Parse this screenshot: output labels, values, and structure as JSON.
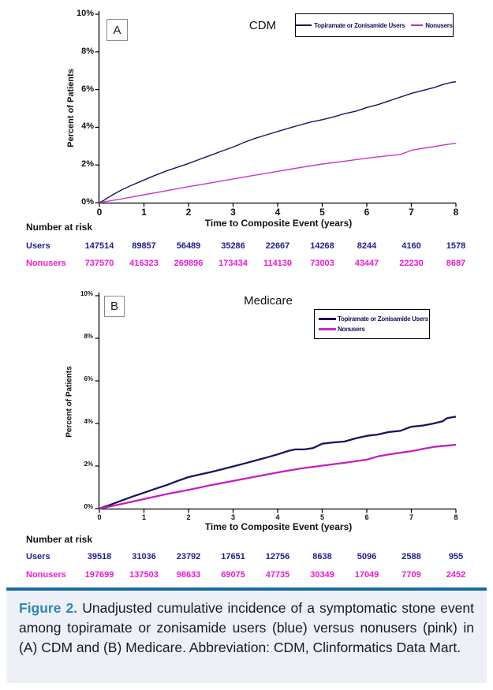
{
  "caption": {
    "label": "Figure 2.",
    "text": " Unadjusted cumulative incidence of a symptomatic stone event among topiramate or zonisamide users (blue) versus nonusers (pink) in (A) CDM and (B) Medicare. Abbreviation: CDM, Clinformatics Data Mart.",
    "accent_color": "#2e86ba",
    "rule_color": "#1a6da4",
    "background_color": "#edf1f7"
  },
  "colors": {
    "users_line": "#17155e",
    "nonusers_line_a": "#c936c9",
    "nonusers_line_b": "#c21fc2",
    "users_text": "#201d8a",
    "nonusers_text": "#ea1dca"
  },
  "chart_data": [
    {
      "type": "line",
      "panel_label": "A",
      "title": "CDM",
      "xlabel": "Time to Composite Event (years)",
      "ylabel": "Percent of Patients",
      "xlim": [
        0,
        8
      ],
      "ylim": [
        0,
        10
      ],
      "xticks": [
        "0",
        "1",
        "2",
        "3",
        "4",
        "5",
        "6",
        "7",
        "8"
      ],
      "ytick_labels": [
        "0%",
        "2%",
        "4%",
        "6%",
        "8%",
        "10%"
      ],
      "grid": false,
      "legend_position": "top-right-horizontal",
      "series": [
        {
          "name": "Topiramate or Zonisamide Users",
          "color": "#17155e",
          "width": 1.4,
          "x": [
            0,
            0.1,
            0.2,
            0.3,
            0.5,
            0.7,
            1,
            1.25,
            1.5,
            1.75,
            2,
            2.25,
            2.5,
            2.75,
            3,
            3.25,
            3.5,
            3.75,
            4,
            4.25,
            4.5,
            4.75,
            5,
            5.25,
            5.5,
            5.75,
            6,
            6.25,
            6.5,
            6.75,
            7,
            7.25,
            7.5,
            7.75,
            7.9,
            8
          ],
          "y": [
            0,
            0.12,
            0.28,
            0.42,
            0.68,
            0.9,
            1.2,
            1.45,
            1.68,
            1.88,
            2.08,
            2.3,
            2.52,
            2.74,
            2.95,
            3.2,
            3.42,
            3.6,
            3.78,
            3.95,
            4.12,
            4.28,
            4.4,
            4.55,
            4.72,
            4.85,
            5.05,
            5.2,
            5.4,
            5.6,
            5.8,
            5.95,
            6.1,
            6.3,
            6.38,
            6.42
          ]
        },
        {
          "name": "Nonusers",
          "color": "#c936c9",
          "width": 1.4,
          "x": [
            0,
            0.5,
            1,
            1.5,
            2,
            2.5,
            3,
            3.5,
            4,
            4.5,
            5,
            5.5,
            6,
            6.5,
            6.75,
            7,
            7.25,
            7.5,
            7.75,
            8
          ],
          "y": [
            0,
            0.2,
            0.42,
            0.63,
            0.85,
            1.05,
            1.26,
            1.46,
            1.66,
            1.86,
            2.05,
            2.2,
            2.36,
            2.5,
            2.55,
            2.78,
            2.88,
            2.97,
            3.07,
            3.15
          ]
        }
      ],
      "number_at_risk": {
        "heading": "Number at risk",
        "rows": [
          {
            "label": "Users",
            "values": [
              "147514",
              "89857",
              "56489",
              "35286",
              "22667",
              "14268",
              "8244",
              "4160",
              "1578"
            ]
          },
          {
            "label": "Nonusers",
            "values": [
              "737570",
              "416323",
              "269896",
              "173434",
              "114130",
              "73003",
              "43447",
              "22230",
              "8687"
            ]
          }
        ]
      }
    },
    {
      "type": "line",
      "panel_label": "B",
      "title": "Medicare",
      "xlabel": "Time to Composite Event (years)",
      "ylabel": "Percent of Patients",
      "xlim": [
        0,
        8
      ],
      "ylim": [
        0,
        10
      ],
      "xticks": [
        "0",
        "1",
        "2",
        "3",
        "4",
        "5",
        "6",
        "7",
        "8"
      ],
      "ytick_labels": [
        "0%",
        "2%",
        "4%",
        "6%",
        "8%",
        "10%"
      ],
      "grid": false,
      "legend_position": "top-right-stacked",
      "series": [
        {
          "name": "Topiramate or Zonisamide Users",
          "color": "#17155e",
          "width": 2.3,
          "x": [
            0,
            0.25,
            0.5,
            0.75,
            1,
            1.25,
            1.5,
            1.75,
            2,
            2.25,
            2.5,
            2.75,
            3,
            3.25,
            3.5,
            3.75,
            4,
            4.25,
            4.4,
            4.6,
            4.8,
            5,
            5.2,
            5.5,
            5.75,
            6,
            6.25,
            6.5,
            6.75,
            7,
            7.25,
            7.5,
            7.7,
            7.8,
            8
          ],
          "y": [
            0,
            0.18,
            0.38,
            0.57,
            0.75,
            0.93,
            1.1,
            1.3,
            1.48,
            1.6,
            1.72,
            1.85,
            1.98,
            2.12,
            2.26,
            2.4,
            2.55,
            2.72,
            2.78,
            2.78,
            2.85,
            3.05,
            3.1,
            3.15,
            3.3,
            3.42,
            3.48,
            3.6,
            3.65,
            3.85,
            3.9,
            4.0,
            4.1,
            4.25,
            4.32
          ]
        },
        {
          "name": "Nonusers",
          "color": "#c21fc2",
          "width": 2.3,
          "x": [
            0,
            0.5,
            1,
            1.5,
            2,
            2.5,
            3,
            3.5,
            4,
            4.5,
            5,
            5.5,
            6,
            6.25,
            6.5,
            7,
            7.25,
            7.5,
            7.75,
            8
          ],
          "y": [
            0,
            0.22,
            0.45,
            0.68,
            0.88,
            1.1,
            1.3,
            1.5,
            1.7,
            1.88,
            2.02,
            2.15,
            2.3,
            2.45,
            2.55,
            2.7,
            2.8,
            2.9,
            2.95,
            3.0
          ]
        }
      ],
      "number_at_risk": {
        "heading": "Number at risk",
        "rows": [
          {
            "label": "Users",
            "values": [
              "39518",
              "31036",
              "23792",
              "17651",
              "12756",
              "8638",
              "5096",
              "2588",
              "955"
            ]
          },
          {
            "label": "Nonusers",
            "values": [
              "197699",
              "137503",
              "98633",
              "69075",
              "47735",
              "30349",
              "17049",
              "7709",
              "2452"
            ]
          }
        ]
      }
    }
  ]
}
